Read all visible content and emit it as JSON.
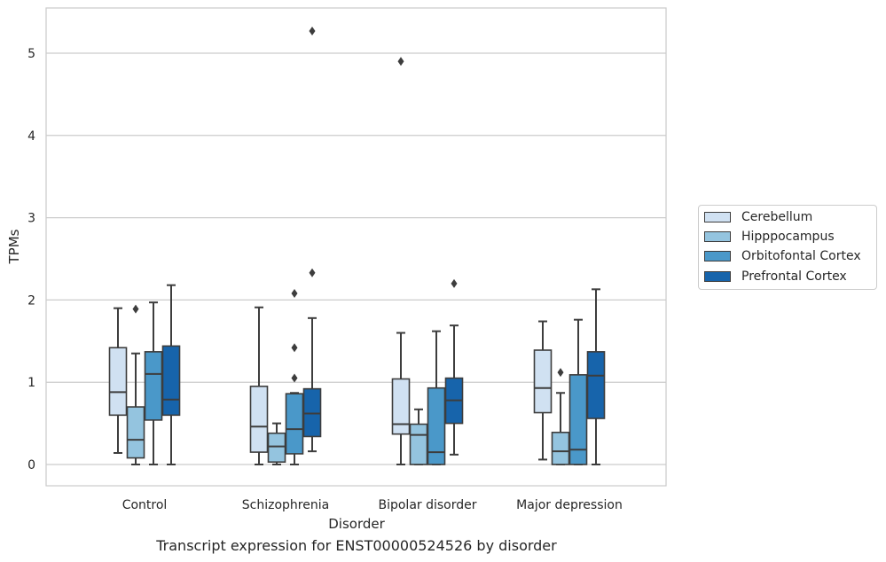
{
  "chart_data": {
    "type": "box",
    "xlabel": "Disorder",
    "ylabel": "TPMs",
    "caption": "Transcript expression for ENST00000524526 by disorder",
    "categories": [
      "Control",
      "Schizophrenia",
      "Bipolar disorder",
      "Major depression"
    ],
    "yticks": [
      "0",
      "1",
      "2",
      "3",
      "4",
      "5"
    ],
    "ylim": [
      -0.25,
      5.55
    ],
    "grid": "horizontal",
    "legend_position": "right",
    "series": [
      {
        "name": "Cerebellum",
        "color": "#d0e1f2",
        "boxes": [
          {
            "whisker_low": 0.14,
            "q1": 0.6,
            "median": 0.88,
            "q3": 1.42,
            "whisker_high": 1.9,
            "outliers": []
          },
          {
            "whisker_low": 0.0,
            "q1": 0.15,
            "median": 0.46,
            "q3": 0.95,
            "whisker_high": 1.91,
            "outliers": []
          },
          {
            "whisker_low": 0.0,
            "q1": 0.37,
            "median": 0.49,
            "q3": 1.04,
            "whisker_high": 1.6,
            "outliers": [
              4.9
            ]
          },
          {
            "whisker_low": 0.06,
            "q1": 0.63,
            "median": 0.93,
            "q3": 1.39,
            "whisker_high": 1.74,
            "outliers": []
          }
        ]
      },
      {
        "name": "Hipppocampus",
        "color": "#94c4df",
        "boxes": [
          {
            "whisker_low": 0.0,
            "q1": 0.08,
            "median": 0.3,
            "q3": 0.7,
            "whisker_high": 1.35,
            "outliers": [
              1.89
            ]
          },
          {
            "whisker_low": 0.0,
            "q1": 0.03,
            "median": 0.22,
            "q3": 0.38,
            "whisker_high": 0.5,
            "outliers": []
          },
          {
            "whisker_low": 0.0,
            "q1": 0.0,
            "median": 0.36,
            "q3": 0.49,
            "whisker_high": 0.67,
            "outliers": []
          },
          {
            "whisker_low": 0.0,
            "q1": 0.0,
            "median": 0.16,
            "q3": 0.39,
            "whisker_high": 0.87,
            "outliers": [
              1.12
            ]
          }
        ]
      },
      {
        "name": "Orbitofontal Cortex",
        "color": "#4a98c9",
        "boxes": [
          {
            "whisker_low": 0.0,
            "q1": 0.54,
            "median": 1.1,
            "q3": 1.37,
            "whisker_high": 1.97,
            "outliers": []
          },
          {
            "whisker_low": 0.0,
            "q1": 0.13,
            "median": 0.43,
            "q3": 0.86,
            "whisker_high": 0.87,
            "outliers": [
              1.42,
              1.05,
              2.08
            ]
          },
          {
            "whisker_low": 0.0,
            "q1": 0.0,
            "median": 0.15,
            "q3": 0.93,
            "whisker_high": 1.62,
            "outliers": []
          },
          {
            "whisker_low": 0.0,
            "q1": 0.0,
            "median": 0.18,
            "q3": 1.09,
            "whisker_high": 1.76,
            "outliers": []
          }
        ]
      },
      {
        "name": "Prefrontal Cortex",
        "color": "#1764ab",
        "boxes": [
          {
            "whisker_low": 0.0,
            "q1": 0.6,
            "median": 0.79,
            "q3": 1.44,
            "whisker_high": 2.18,
            "outliers": []
          },
          {
            "whisker_low": 0.16,
            "q1": 0.34,
            "median": 0.62,
            "q3": 0.92,
            "whisker_high": 1.78,
            "outliers": [
              2.33,
              5.27
            ]
          },
          {
            "whisker_low": 0.12,
            "q1": 0.5,
            "median": 0.78,
            "q3": 1.05,
            "whisker_high": 1.69,
            "outliers": [
              2.2
            ]
          },
          {
            "whisker_low": 0.0,
            "q1": 0.56,
            "median": 1.08,
            "q3": 1.37,
            "whisker_high": 2.13,
            "outliers": []
          }
        ]
      }
    ]
  }
}
